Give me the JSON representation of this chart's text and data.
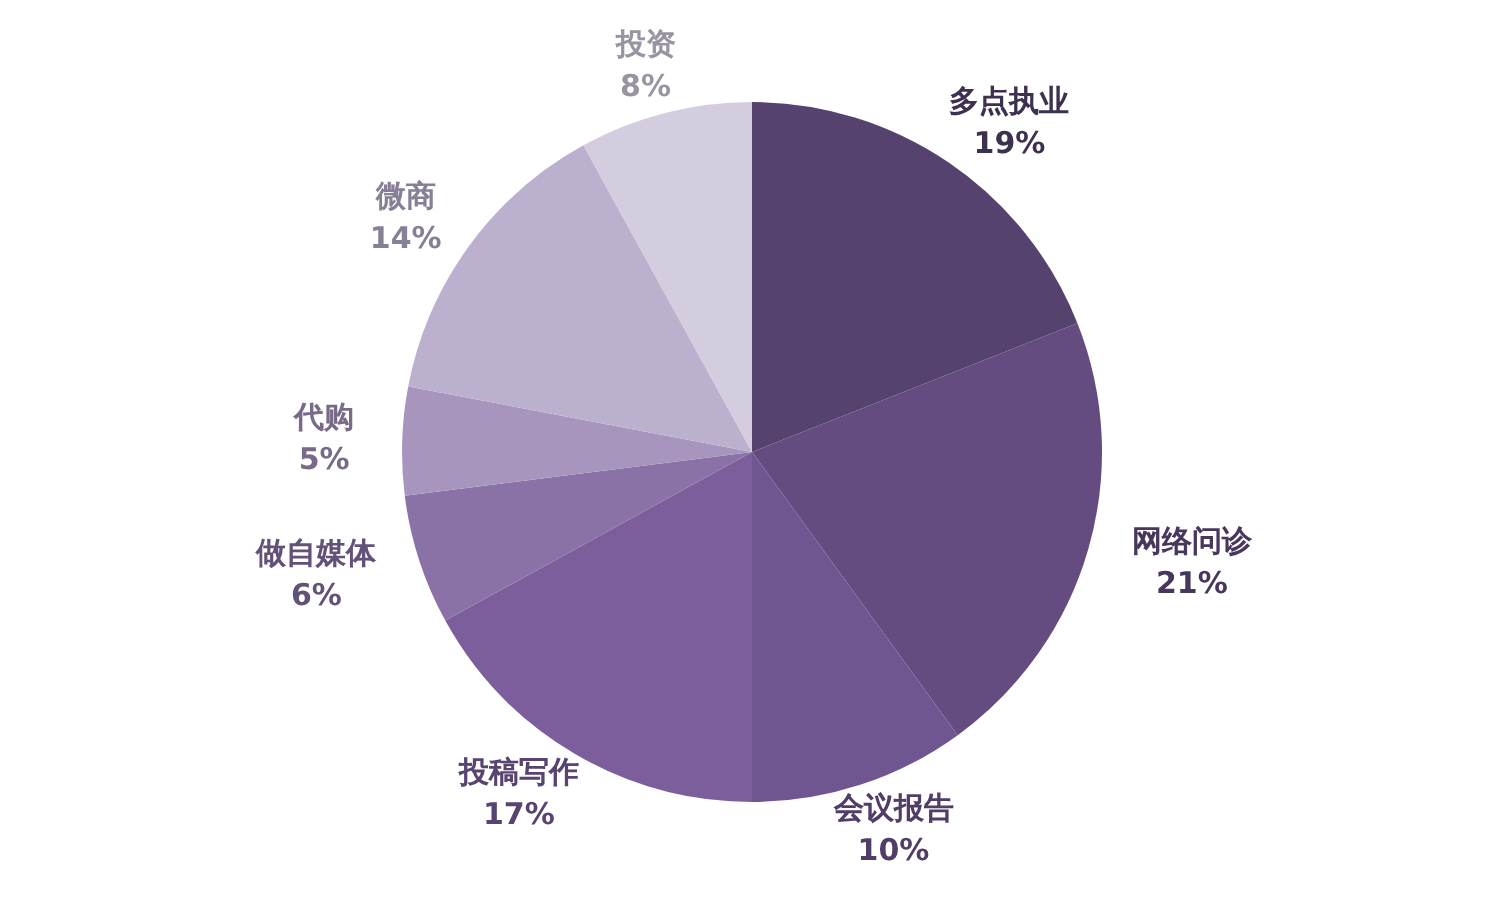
{
  "chart_data": {
    "type": "pie",
    "categories": [
      "多点执业",
      "网络问诊",
      "会议报告",
      "投稿写作",
      "做自媒体",
      "代购",
      "微商",
      "投资"
    ],
    "values": [
      19,
      21,
      10,
      17,
      6,
      5,
      14,
      8
    ],
    "value_labels": [
      "19%",
      "21%",
      "10%",
      "17%",
      "6%",
      "5%",
      "14%",
      "8%"
    ],
    "colors": [
      "#56426e",
      "#644c80",
      "#6f5690",
      "#7b5e9b",
      "#8a72a6",
      "#a795bd",
      "#bcb0cf",
      "#d4cde0"
    ],
    "legend": false
  }
}
